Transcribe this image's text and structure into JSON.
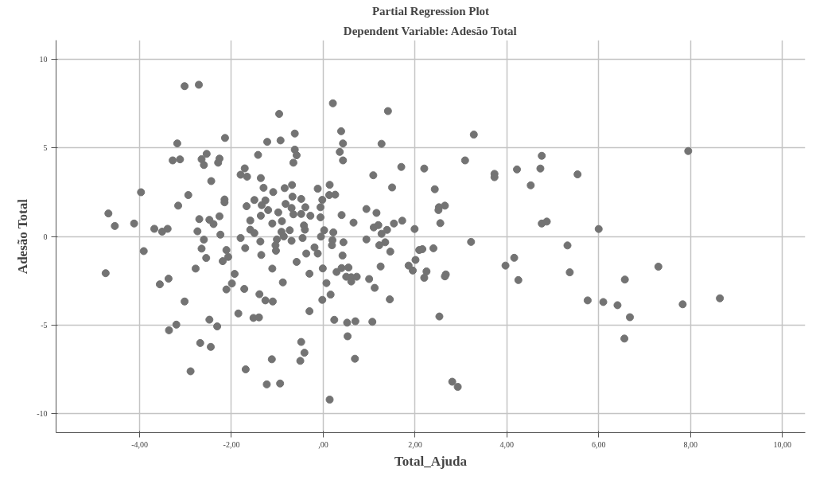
{
  "chart_data": {
    "type": "scatter",
    "title": "Partial Regression Plot",
    "subtitle": "Dependent Variable: Adesão Total",
    "xlabel": "Total_Ajuda",
    "ylabel": "Adesão Total",
    "xlim": [
      -5.82,
      10.5
    ],
    "ylim": [
      -11.1,
      11.1
    ],
    "xticks": [
      {
        "value": -4,
        "label": "-4,00"
      },
      {
        "value": -2,
        "label": "-2,00"
      },
      {
        "value": 0,
        "label": ",00"
      },
      {
        "value": 2,
        "label": "2,00"
      },
      {
        "value": 4,
        "label": "4,00"
      },
      {
        "value": 6,
        "label": "6,00"
      },
      {
        "value": 8,
        "label": "8,00"
      },
      {
        "value": 10,
        "label": "10,00"
      }
    ],
    "yticks": [
      -10,
      -5,
      0,
      5,
      10
    ],
    "grid": true,
    "marker": "circle",
    "series": [
      {
        "color": "#737373",
        "x": [
          -3.02,
          -2.71,
          -0.96,
          -0.62,
          -1.22,
          -0.93,
          -2.14,
          -3.18,
          -0.62,
          -0.58,
          -1.42,
          -0.65,
          -3.28,
          -3.12,
          -2.65,
          -2.54,
          -2.6,
          -2.26,
          -2.29,
          -1.71,
          -1.8,
          -1.66,
          -1.36,
          -2.44,
          -1.3,
          -0.84,
          -0.68,
          -1.09,
          -0.67,
          -0.48,
          -3.97,
          -2.94,
          -3.16,
          -2.15,
          -2.15,
          -1.5,
          -1.26,
          -1.34,
          -1.67,
          -0.82,
          -0.69,
          -0.39,
          -1.2,
          -0.98,
          -0.65,
          -0.48,
          -1.36,
          -1.59,
          -0.9,
          -1.11,
          -0.42,
          -2.26,
          -2.7,
          -2.48,
          -2.39,
          -4.68,
          -4.54,
          -4.12,
          -3.68,
          -3.51,
          -3.39,
          -2.74,
          -2.6,
          -2.24,
          -1.8,
          -1.59,
          -1.5,
          -1.37,
          -0.91,
          -0.86,
          -1.01,
          -0.73,
          -0.69,
          -0.45,
          -0.4,
          -3.91,
          -4.74,
          -2.65,
          -2.55,
          -2.78,
          -2.11,
          -2.07,
          -2.19,
          -1.7,
          -1.35,
          -1.03,
          -1.04,
          -0.58,
          -0.37,
          -0.3,
          -1.11,
          -0.88,
          -1.93,
          -1.99,
          -2.11,
          -1.72,
          -1.39,
          -1.26,
          -1.1,
          -0.3,
          -3.56,
          -3.37,
          -3.02,
          -1.85,
          -1.52,
          -1.4,
          -3.2,
          -3.36,
          -2.48,
          -2.31,
          -2.68,
          -2.45,
          -2.89,
          -1.69,
          -1.12,
          -0.48,
          -0.41,
          -0.5,
          -1.23,
          -0.94,
          0.21,
          1.41,
          0.39,
          0.43,
          1.27,
          0.36,
          0.43,
          3.28,
          3.09,
          1.7,
          2.2,
          1.09,
          3.73,
          3.73,
          4.22,
          4.76,
          4.73,
          4.52,
          1.5,
          2.43,
          -0.12,
          0.14,
          0.13,
          0.26,
          -0.02,
          -0.06,
          -0.28,
          -0.06,
          0.4,
          0.94,
          1.16,
          0.66,
          1.1,
          1.2,
          1.27,
          1.39,
          1.54,
          1.72,
          1.99,
          2.52,
          2.65,
          2.51,
          2.55,
          4.76,
          4.87,
          0.02,
          -0.05,
          0.22,
          0.2,
          0.44,
          0.94,
          1.35,
          3.22,
          -0.19,
          -0.12,
          0.19,
          1.22,
          1.46,
          0.42,
          -0.01,
          0.29,
          0.4,
          0.55,
          0.5,
          0.61,
          0.61,
          0.73,
          1.0,
          1.12,
          1.25,
          0.07,
          0.16,
          -0.02,
          1.45,
          0.24,
          0.52,
          0.7,
          1.07,
          0.53,
          0.69,
          0.14,
          2.01,
          1.86,
          1.95,
          2.09,
          2.16,
          2.4,
          2.25,
          2.2,
          2.67,
          2.65,
          2.53,
          2.81,
          2.93,
          3.97,
          4.16,
          4.25,
          5.54,
          7.95,
          6.0,
          5.32,
          5.37,
          5.76,
          6.1,
          6.41,
          6.57,
          6.68,
          6.56,
          7.3,
          7.83,
          8.64
        ],
        "values": [
          8.5,
          8.58,
          6.93,
          5.82,
          5.35,
          5.43,
          5.57,
          5.26,
          4.91,
          4.59,
          4.61,
          4.17,
          4.3,
          4.36,
          4.37,
          4.67,
          4.04,
          4.4,
          4.17,
          3.85,
          3.49,
          3.38,
          3.3,
          3.13,
          2.75,
          2.73,
          2.91,
          2.51,
          2.25,
          2.12,
          2.5,
          2.34,
          1.74,
          2.09,
          1.93,
          2.06,
          2.04,
          1.77,
          1.71,
          1.84,
          1.61,
          1.65,
          1.49,
          1.36,
          1.25,
          1.27,
          1.17,
          0.9,
          0.86,
          0.73,
          0.62,
          1.14,
          0.98,
          0.94,
          0.7,
          1.3,
          0.59,
          0.73,
          0.43,
          0.27,
          0.43,
          0.29,
          -0.18,
          0.1,
          -0.09,
          0.38,
          0.19,
          -0.29,
          0.26,
          0.0,
          -0.17,
          0.35,
          -0.25,
          -0.09,
          0.38,
          -0.83,
          -2.08,
          -0.69,
          -1.22,
          -1.82,
          -0.77,
          -1.16,
          -1.4,
          -0.66,
          -1.05,
          -0.81,
          -0.5,
          -1.44,
          -0.97,
          -2.11,
          -1.82,
          -2.6,
          -2.12,
          -2.66,
          -3.0,
          -2.97,
          -3.27,
          -3.62,
          -3.68,
          -4.23,
          -2.71,
          -2.39,
          -3.68,
          -4.36,
          -4.61,
          -4.58,
          -4.99,
          -5.31,
          -4.71,
          -5.09,
          -6.03,
          -6.25,
          -7.63,
          -7.52,
          -6.95,
          -5.97,
          -6.58,
          -7.04,
          -8.37,
          -8.32,
          7.53,
          7.09,
          5.95,
          5.26,
          5.24,
          4.78,
          4.3,
          5.76,
          4.3,
          3.93,
          3.84,
          3.46,
          3.54,
          3.35,
          3.79,
          4.56,
          3.84,
          2.89,
          2.77,
          2.67,
          2.7,
          2.92,
          2.34,
          2.36,
          2.07,
          1.65,
          1.17,
          1.08,
          1.21,
          1.55,
          1.33,
          0.78,
          0.51,
          0.64,
          0.15,
          0.37,
          0.73,
          0.89,
          0.42,
          1.65,
          1.74,
          1.49,
          0.75,
          0.73,
          0.84,
          0.35,
          -0.01,
          0.23,
          -0.21,
          -0.33,
          -0.17,
          -0.33,
          -0.31,
          -0.62,
          -0.97,
          -0.5,
          -0.5,
          -0.86,
          -1.08,
          -1.81,
          -2.01,
          -1.79,
          -1.76,
          -2.28,
          -2.31,
          -2.55,
          -2.28,
          -2.41,
          -2.91,
          -1.7,
          -2.64,
          -3.29,
          -3.59,
          -3.56,
          -4.72,
          -4.88,
          -4.8,
          -4.83,
          -5.65,
          -6.92,
          -9.23,
          -1.33,
          -1.65,
          -1.93,
          -0.77,
          -0.72,
          -0.67,
          -1.98,
          -2.34,
          -2.15,
          -2.26,
          -4.53,
          -8.22,
          -8.51,
          -1.65,
          -1.21,
          -2.47,
          3.51,
          4.83,
          0.42,
          -0.51,
          -2.03,
          -3.62,
          -3.71,
          -3.89,
          -2.44,
          -4.57,
          -5.78,
          -1.71,
          -3.84,
          -3.5
        ]
      }
    ]
  }
}
